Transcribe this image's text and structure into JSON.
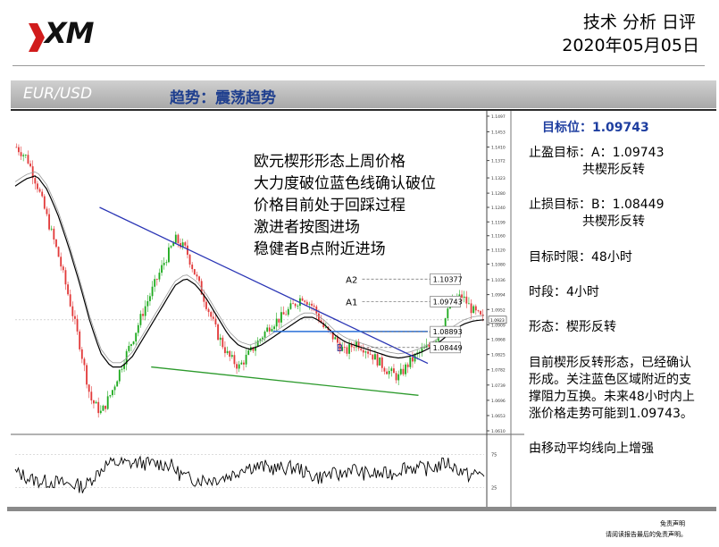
{
  "header": {
    "logo_text": "XM",
    "report_title": "技术 分析 日评",
    "date": "2020年05月05日"
  },
  "band": {
    "pair": "EUR/USD",
    "trend": "趋势：震荡趋势"
  },
  "chart_data": {
    "type": "candlestick",
    "symbol": "EUR/USD",
    "timeframe": "4小时",
    "y_range": [
      1.061,
      1.1497
    ],
    "y_ticks": [
      1.1497,
      1.1453,
      1.141,
      1.1372,
      1.1323,
      1.128,
      1.124,
      1.1199,
      1.116,
      1.112,
      1.108,
      1.1036,
      1.0994,
      1.0952,
      1.0909,
      1.0868,
      1.0825,
      1.0782,
      1.0739,
      1.0696,
      1.0653,
      1.061
    ],
    "current_price": 1.0923,
    "sub_indicator_ticks": [
      75,
      25
    ],
    "annotation_lines": [
      "欧元楔形形态上周价格",
      "大力度破位蓝色线确认破位",
      "价格目前处于回踩过程",
      "激进者按图进场",
      "稳健者B点附近进场"
    ],
    "levels": [
      {
        "name": "A2",
        "value": 1.10377
      },
      {
        "name": "A1",
        "value": 1.09743
      },
      {
        "name": "",
        "value": 1.08893
      },
      {
        "name": "B",
        "value": 1.08449
      }
    ],
    "upper_trendline": [
      {
        "t": 0.18,
        "price": 1.124
      },
      {
        "t": 0.88,
        "price": 1.08
      }
    ],
    "lower_trendline": [
      {
        "t": 0.29,
        "price": 1.079
      },
      {
        "t": 0.86,
        "price": 1.071
      }
    ],
    "resistance_line": {
      "t_start": 0.55,
      "t_end": 0.88,
      "price": 1.089
    },
    "close_path": [
      1.141,
      1.138,
      1.13,
      1.12,
      1.11,
      1.098,
      1.085,
      1.07,
      1.066,
      1.072,
      1.08,
      1.087,
      1.095,
      1.102,
      1.109,
      1.115,
      1.112,
      1.104,
      1.096,
      1.088,
      1.082,
      1.079,
      1.083,
      1.087,
      1.091,
      1.093,
      1.096,
      1.099,
      1.096,
      1.09,
      1.087,
      1.083,
      1.086,
      1.084,
      1.081,
      1.078,
      1.076,
      1.08,
      1.083,
      1.085,
      1.089,
      1.097,
      1.099,
      1.095,
      1.0923
    ],
    "ma_path": [
      1.13,
      1.132,
      1.133,
      1.129,
      1.122,
      1.113,
      1.103,
      1.092,
      1.083,
      1.079,
      1.079,
      1.082,
      1.087,
      1.092,
      1.097,
      1.102,
      1.104,
      1.102,
      1.098,
      1.093,
      1.088,
      1.085,
      1.084,
      1.085,
      1.087,
      1.089,
      1.091,
      1.093,
      1.093,
      1.091,
      1.088,
      1.086,
      1.085,
      1.084,
      1.083,
      1.082,
      1.0815,
      1.082,
      1.083,
      1.0845,
      1.0865,
      1.089,
      1.091,
      1.092,
      1.0923
    ]
  },
  "panel": {
    "target": "目标位：1.09743",
    "tp_label": "止盈目标：A：1.09743",
    "tp_pattern": "共楔形反转",
    "sl_label": "止损目标：B：1.08449",
    "sl_pattern": "共楔形反转",
    "time_limit": "目标时限：48小时",
    "period": "时段：4小时",
    "pattern": "形态：楔形反转",
    "analysis": [
      "目前楔形反转形态，已经确认",
      "形成。关注蓝色区域附近的支",
      "撑阻力互换。未来48小时内上",
      "涨价格走势可能到1.09743。"
    ],
    "ma_note": "由移动平均线向上增强"
  },
  "footer": {
    "disclaimer_title": "免责声明",
    "disclaimer_text": "请阅读报告最后的免责声明。"
  },
  "colors": {
    "up": "#1faa1f",
    "down": "#e23b3b",
    "trendline_upper": "#2a35b5",
    "trendline_lower": "#2c9a2c",
    "resistance": "#2a6fd8",
    "ma": "#000000",
    "title_blue": "#1e3e8e"
  }
}
